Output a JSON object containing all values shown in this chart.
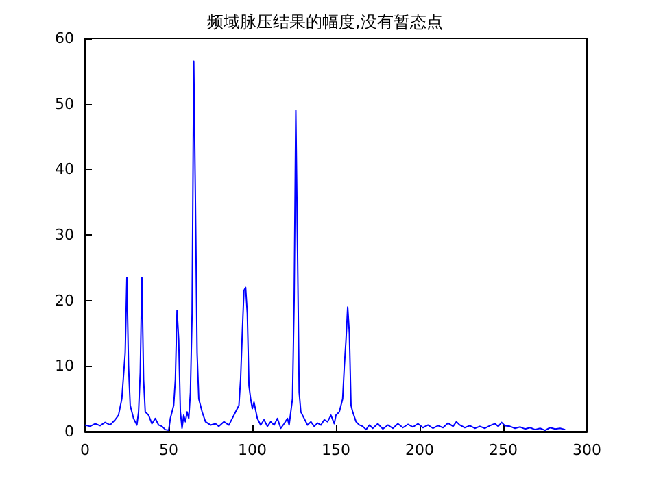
{
  "chart_data": {
    "type": "line",
    "title": "频域脉压结果的幅度,没有暂态点",
    "x": [
      0,
      3,
      6,
      9,
      12,
      15,
      18,
      20,
      22,
      24,
      25,
      26,
      27,
      29,
      31,
      32,
      33,
      34,
      35,
      36,
      38,
      40,
      42,
      44,
      46,
      48,
      50,
      51,
      53,
      54,
      55,
      56,
      57,
      58,
      59,
      60,
      61,
      62,
      63,
      64,
      65,
      66,
      67,
      68,
      70,
      72,
      75,
      78,
      80,
      83,
      86,
      88,
      90,
      92,
      93,
      94,
      95,
      96,
      97,
      98,
      99,
      100,
      101,
      103,
      105,
      107,
      109,
      111,
      113,
      115,
      117,
      119,
      121,
      122,
      123,
      124,
      125,
      126,
      127,
      128,
      129,
      131,
      133,
      135,
      137,
      139,
      141,
      143,
      145,
      147,
      149,
      150,
      152,
      154,
      155,
      156,
      157,
      158,
      159,
      160,
      162,
      164,
      166,
      168,
      170,
      172,
      175,
      178,
      181,
      184,
      187,
      190,
      193,
      196,
      199,
      202,
      205,
      208,
      211,
      214,
      217,
      220,
      222,
      224,
      227,
      230,
      233,
      236,
      239,
      242,
      245,
      247,
      249,
      251,
      254,
      257,
      260,
      263,
      266,
      269,
      272,
      275,
      278,
      281,
      284,
      287
    ],
    "series": [
      {
        "color": "#0000ff",
        "values": [
          1,
          0.8,
          1.2,
          0.9,
          1.4,
          1,
          1.8,
          2.5,
          5,
          12,
          23.5,
          10,
          4,
          2,
          1,
          3,
          9,
          23.5,
          8,
          3,
          2.5,
          1.2,
          2,
          1,
          0.8,
          0.3,
          0.2,
          2,
          4,
          8,
          18.5,
          14,
          3,
          0.5,
          2.5,
          1.5,
          3,
          2,
          6,
          18,
          56.5,
          35,
          12,
          5,
          3,
          1.5,
          1,
          1.2,
          0.8,
          1.5,
          1,
          2,
          3,
          4,
          8,
          15,
          21.5,
          22,
          18,
          7,
          5,
          3.5,
          4.5,
          2,
          1,
          1.8,
          0.8,
          1.5,
          1,
          2,
          0.5,
          1.2,
          2,
          1,
          3,
          5,
          20,
          49,
          28,
          6,
          3,
          2,
          1,
          1.5,
          0.8,
          1.3,
          1,
          1.8,
          1.5,
          2.5,
          1.2,
          2.5,
          3,
          5,
          10,
          14,
          19,
          15,
          4,
          3,
          1.5,
          1,
          0.8,
          0.3,
          1,
          0.5,
          1.2,
          0.4,
          1,
          0.5,
          1.2,
          0.6,
          1.1,
          0.7,
          1.2,
          0.6,
          1,
          0.5,
          0.9,
          0.6,
          1.3,
          0.8,
          1.5,
          1,
          0.6,
          0.9,
          0.5,
          0.8,
          0.5,
          0.9,
          1.2,
          0.8,
          1.4,
          0.9,
          0.8,
          0.5,
          0.7,
          0.4,
          0.6,
          0.3,
          0.5,
          0.2,
          0.6,
          0.4,
          0.5,
          0.3
        ]
      }
    ],
    "xlim": [
      0,
      300
    ],
    "xticks": [
      0,
      50,
      100,
      150,
      200,
      250,
      300
    ],
    "ylim": [
      0,
      60
    ],
    "yticks": [
      0,
      10,
      20,
      30,
      40,
      50,
      60
    ],
    "grid": false,
    "marker": "none",
    "line_style": "solid"
  }
}
